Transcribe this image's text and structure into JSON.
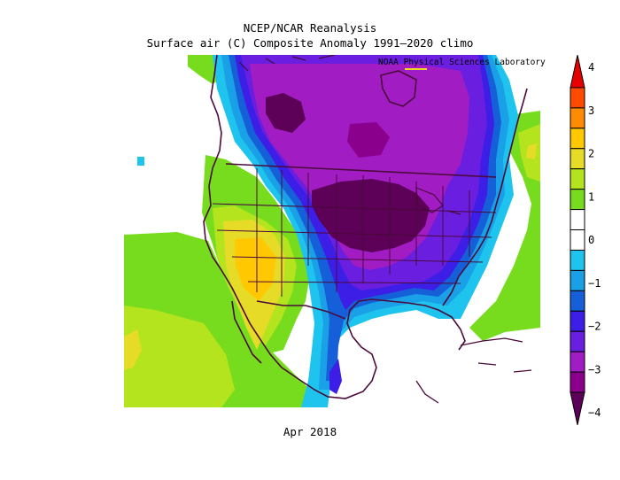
{
  "title": "NCEP/NCAR Reanalysis",
  "subtitle": "Surface air (C) Composite Anomaly 1991–2020 climo",
  "credit": "NOAA Physical Sciences Laboratory",
  "period": "Apr 2018",
  "legend": {
    "levels": [
      -4,
      -3.5,
      -3,
      -2.5,
      -2,
      -1.5,
      -1,
      -0.5,
      0,
      0.5,
      1,
      1.5,
      2,
      2.5,
      3,
      3.5,
      4
    ],
    "tick_labels": [
      "4",
      "3",
      "2",
      "1",
      "0",
      "−1",
      "−2",
      "−3",
      "−4"
    ],
    "tick_values": [
      4,
      3,
      2,
      1,
      0,
      -1,
      -2,
      -3,
      -4
    ],
    "colors": [
      "#5c0058",
      "#8a008c",
      "#a21cc4",
      "#6a1ee0",
      "#3c1ee6",
      "#1560d8",
      "#1aa0e6",
      "#1ec4ee",
      "#ffffff",
      "#ffffff",
      "#78dc1e",
      "#b4e41e",
      "#e6dc28",
      "#ffc800",
      "#ff8c00",
      "#ff4b00",
      "#e60000"
    ],
    "extend": "both"
  },
  "colors": {
    "coastline": "#4a0a3a",
    "anomaly_strong_cold": "#5c0058",
    "anomaly_cold": "#8a008c",
    "anomaly_warm": "#ffc800"
  }
}
